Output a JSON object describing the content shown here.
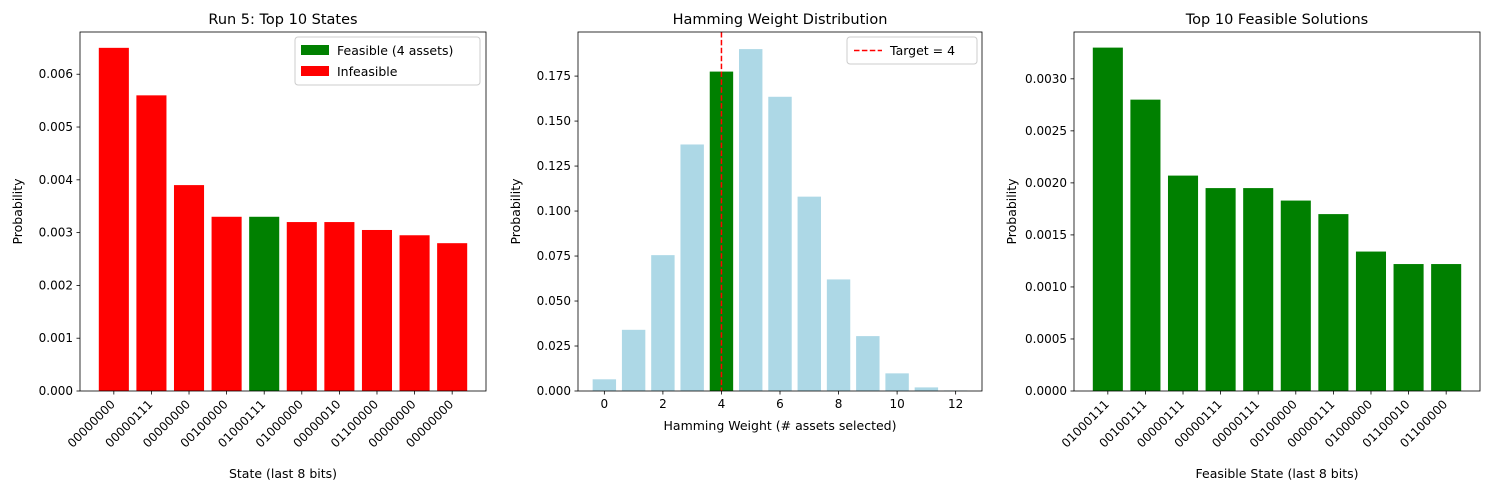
{
  "chart_data": [
    {
      "type": "bar",
      "title": "Run 5: Top 10 States",
      "xlabel": "State (last 8 bits)",
      "ylabel": "Probability",
      "ylim": [
        0,
        0.0068
      ],
      "yticks": [
        "0.000",
        "0.001",
        "0.002",
        "0.003",
        "0.004",
        "0.005",
        "0.006"
      ],
      "ytick_values": [
        0,
        0.001,
        0.002,
        0.003,
        0.004,
        0.005,
        0.006
      ],
      "categories": [
        "00000000",
        "00000111",
        "00000000",
        "00100000",
        "01000111",
        "01000000",
        "00000010",
        "01100000",
        "00000000",
        "00000000"
      ],
      "values": [
        0.0065,
        0.0056,
        0.0039,
        0.0033,
        0.0033,
        0.0032,
        0.0032,
        0.00305,
        0.00295,
        0.0028
      ],
      "bar_colors": [
        "#ff0000",
        "#ff0000",
        "#ff0000",
        "#ff0000",
        "#008000",
        "#ff0000",
        "#ff0000",
        "#ff0000",
        "#ff0000",
        "#ff0000"
      ],
      "legend": [
        {
          "label": "Feasible (4 assets)",
          "color": "#008000"
        },
        {
          "label": "Infeasible",
          "color": "#ff0000"
        }
      ],
      "legend_position": "top-right",
      "grid": false
    },
    {
      "type": "bar",
      "title": "Hamming Weight Distribution",
      "xlabel": "Hamming Weight (# assets selected)",
      "ylabel": "Probability",
      "ylim": [
        0,
        0.1995
      ],
      "xlim": [
        -0.9,
        12.9
      ],
      "yticks": [
        "0.000",
        "0.025",
        "0.050",
        "0.075",
        "0.100",
        "0.125",
        "0.150",
        "0.175"
      ],
      "ytick_values": [
        0,
        0.025,
        0.05,
        0.075,
        0.1,
        0.125,
        0.15,
        0.175
      ],
      "xticks": [
        "0",
        "2",
        "4",
        "6",
        "8",
        "10",
        "12"
      ],
      "xtick_values": [
        0,
        2,
        4,
        6,
        8,
        10,
        12
      ],
      "x": [
        0,
        1,
        2,
        3,
        4,
        5,
        6,
        7,
        8,
        9,
        10,
        11,
        12
      ],
      "values": [
        0.0065,
        0.034,
        0.0755,
        0.137,
        0.1775,
        0.19,
        0.1635,
        0.108,
        0.062,
        0.0305,
        0.0098,
        0.002,
        0.0003
      ],
      "bar_colors": [
        "#add8e6",
        "#add8e6",
        "#add8e6",
        "#add8e6",
        "#008000",
        "#add8e6",
        "#add8e6",
        "#add8e6",
        "#add8e6",
        "#add8e6",
        "#add8e6",
        "#add8e6",
        "#add8e6"
      ],
      "target_line": {
        "x": 4,
        "color": "#ff0000",
        "label": "Target = 4"
      },
      "legend_position": "top-right",
      "grid": false
    },
    {
      "type": "bar",
      "title": "Top 10 Feasible Solutions",
      "xlabel": "Feasible State (last 8 bits)",
      "ylabel": "Probability",
      "ylim": [
        0,
        0.00345
      ],
      "yticks": [
        "0.0000",
        "0.0005",
        "0.0010",
        "0.0015",
        "0.0020",
        "0.0025",
        "0.0030"
      ],
      "ytick_values": [
        0,
        0.0005,
        0.001,
        0.0015,
        0.002,
        0.0025,
        0.003
      ],
      "categories": [
        "01000111",
        "00100111",
        "00000111",
        "00000111",
        "00000111",
        "00100000",
        "00000111",
        "01000000",
        "01100010",
        "01100000"
      ],
      "values": [
        0.0033,
        0.0028,
        0.00207,
        0.00195,
        0.00195,
        0.00183,
        0.0017,
        0.00134,
        0.00122,
        0.00122
      ],
      "bar_colors": [
        "#008000",
        "#008000",
        "#008000",
        "#008000",
        "#008000",
        "#008000",
        "#008000",
        "#008000",
        "#008000",
        "#008000"
      ],
      "grid": false
    }
  ]
}
